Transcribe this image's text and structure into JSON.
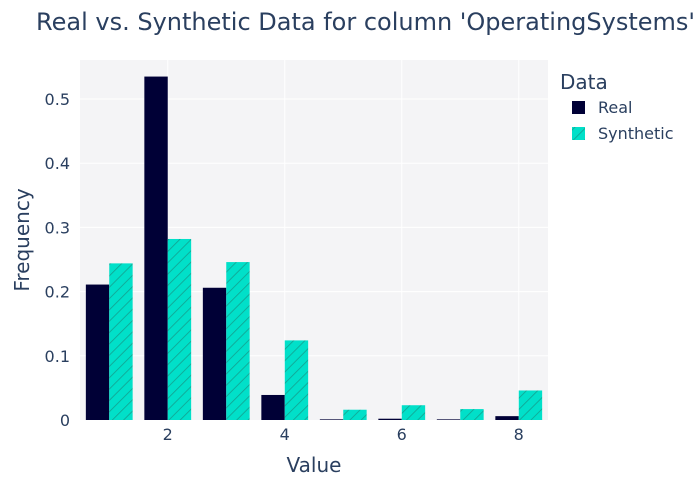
{
  "chart_data": {
    "type": "bar",
    "title": "Real vs. Synthetic Data for column 'OperatingSystems'",
    "xlabel": "Value",
    "ylabel": "Frequency",
    "x": [
      1,
      2,
      3,
      4,
      5,
      6,
      7,
      8
    ],
    "xticks": [
      2,
      4,
      6,
      8
    ],
    "yticks": [
      0,
      0.1,
      0.2,
      0.3,
      0.4,
      0.5
    ],
    "ytick_labels": [
      "0",
      "0.1",
      "0.2",
      "0.3",
      "0.4",
      "0.5"
    ],
    "xlim": [
      0.5,
      8.5
    ],
    "ylim": [
      0,
      0.5608
    ],
    "grid": true,
    "legend_title": "Data",
    "legend_position": "right",
    "series": [
      {
        "name": "Real",
        "color": "#000036",
        "pattern": "none",
        "values": [
          0.211,
          0.535,
          0.206,
          0.039,
          0.001,
          0.002,
          0.001,
          0.006
        ]
      },
      {
        "name": "Synthetic",
        "color": "#01e0c9",
        "pattern": "diagonal-hatch",
        "values": [
          0.244,
          0.282,
          0.246,
          0.124,
          0.016,
          0.023,
          0.017,
          0.046
        ]
      }
    ],
    "background": "#f4f4f6"
  }
}
